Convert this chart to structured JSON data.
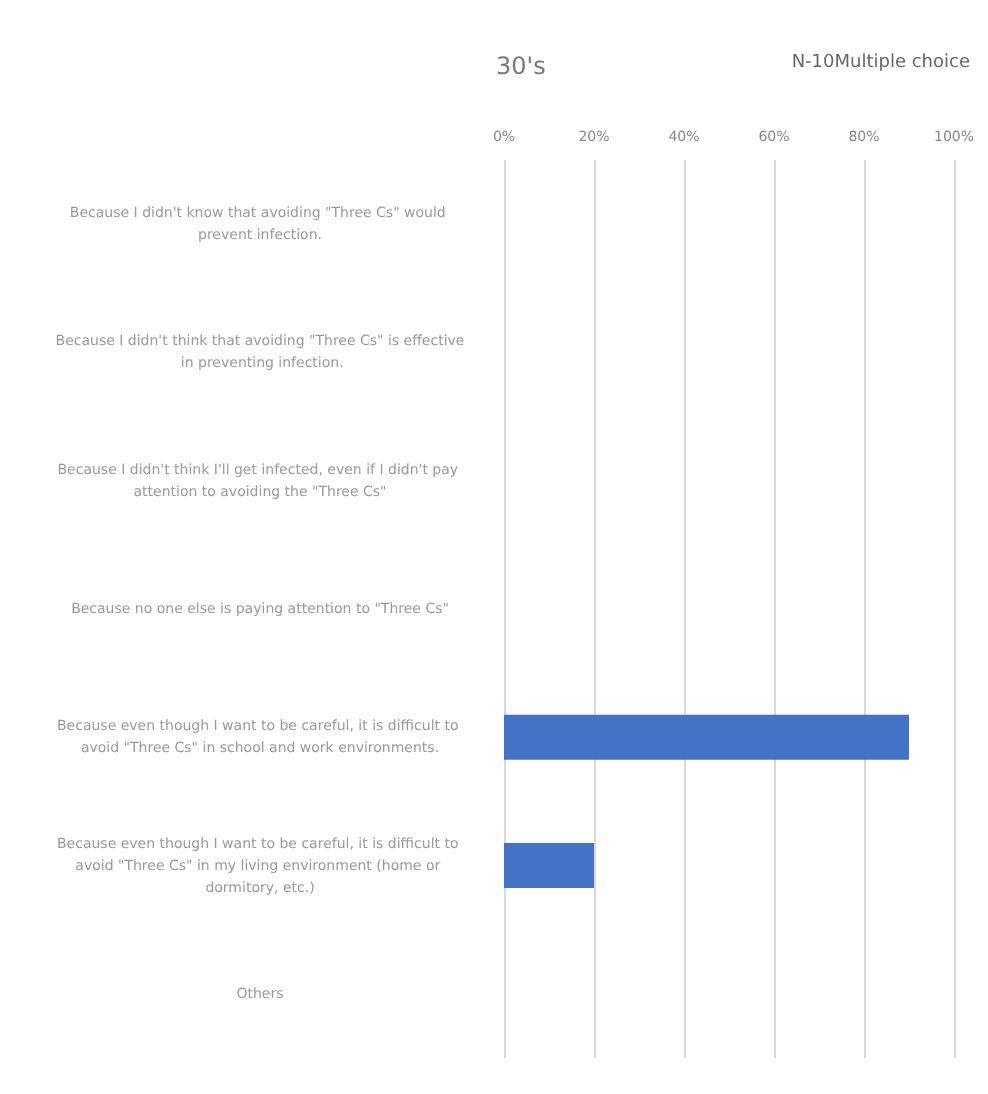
{
  "chart_data": {
    "type": "bar",
    "orientation": "horizontal",
    "title": "30's",
    "annotations": [
      "N-10Multiple choice"
    ],
    "categories": [
      "Because I didn't know that avoiding \"Three Cs\" would prevent infection.",
      "Because I didn't think that avoiding \"Three Cs\" is effective in preventing infection.",
      "Because I didn't think I'll get infected, even if I didn't pay attention to avoiding the \"Three Cs\"",
      "Because no one else is paying attention to \"Three Cs\"",
      "Because even though I want to be careful, it is difficult to avoid \"Three Cs\" in school and work environments.",
      "Because even though I want to be careful, it is difficult to avoid \"Three Cs\" in my living environment (home or dormitory, etc.)",
      "Others"
    ],
    "values": [
      0,
      0,
      0,
      0,
      90,
      20,
      0
    ],
    "color": "#4472c4",
    "xlim": [
      0,
      100
    ],
    "xticks": [
      {
        "value": 0,
        "label": "0%"
      },
      {
        "value": 20,
        "label": "20%"
      },
      {
        "value": 40,
        "label": "40%"
      },
      {
        "value": 60,
        "label": "60%"
      },
      {
        "value": 80,
        "label": "80%"
      },
      {
        "value": 100,
        "label": "100%"
      }
    ],
    "grid": "x"
  }
}
